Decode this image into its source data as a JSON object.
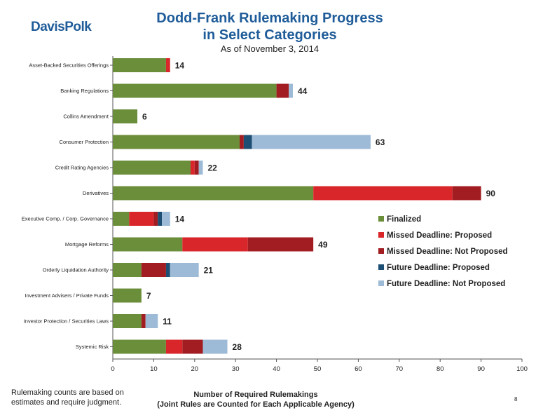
{
  "logo": "DavisPolk",
  "footnote": {
    "line1": "Rulemaking counts are based on",
    "line2": "estimates and require judgment."
  },
  "page_number": "8",
  "colors": {
    "finalized": "#6b8e3a",
    "missed_proposed": "#d9262a",
    "missed_not_proposed": "#a11d21",
    "future_proposed": "#1d4e73",
    "future_not_proposed": "#9dbad6"
  },
  "chart_data": {
    "type": "bar",
    "orientation": "horizontal",
    "stacked": true,
    "title_line1": "Dodd-Frank Rulemaking Progress",
    "title_line2": "in Select Categories",
    "subtitle": "As of November 3, 2014",
    "xlabel_line1": "Number of Required Rulemakings",
    "xlabel_line2": "(Joint Rules are Counted for Each Applicable Agency)",
    "xlim": [
      0,
      100
    ],
    "xticks": [
      0,
      10,
      20,
      30,
      40,
      50,
      60,
      70,
      80,
      90,
      100
    ],
    "legend_position": "right",
    "categories": [
      "Asset-Backed Securities Offerings",
      "Banking Regulations",
      "Collins Amendment",
      "Consumer Protection",
      "Credit Rating Agencies",
      "Derivatives",
      "Executive Comp. / Corp. Governance",
      "Mortgage Reforms",
      "Orderly Liquidation Authority",
      "Investment Advisers / Private Funds",
      "Investor Protection / Securities Laws",
      "Systemic Risk"
    ],
    "totals": [
      14,
      44,
      6,
      63,
      22,
      90,
      14,
      49,
      21,
      7,
      11,
      28
    ],
    "series": [
      {
        "name": "Finalized",
        "color": "#6b8e3a",
        "values": [
          13,
          40,
          6,
          31,
          19,
          49,
          4,
          17,
          7,
          7,
          7,
          13
        ]
      },
      {
        "name": "Missed Deadline: Proposed",
        "color": "#d9262a",
        "values": [
          1,
          0,
          0,
          0,
          1,
          34,
          6,
          16,
          0,
          0,
          0,
          4
        ]
      },
      {
        "name": "Missed Deadline: Not Proposed",
        "color": "#a11d21",
        "values": [
          0,
          3,
          0,
          1,
          1,
          7,
          1,
          16,
          6,
          0,
          1,
          5
        ]
      },
      {
        "name": "Future Deadline: Proposed",
        "color": "#1d4e73",
        "values": [
          0,
          0,
          0,
          2,
          0,
          0,
          1,
          0,
          1,
          0,
          0,
          0
        ]
      },
      {
        "name": "Future Deadline: Not Proposed",
        "color": "#9dbad6",
        "values": [
          0,
          1,
          0,
          29,
          1,
          0,
          2,
          0,
          7,
          0,
          3,
          6
        ]
      }
    ]
  }
}
